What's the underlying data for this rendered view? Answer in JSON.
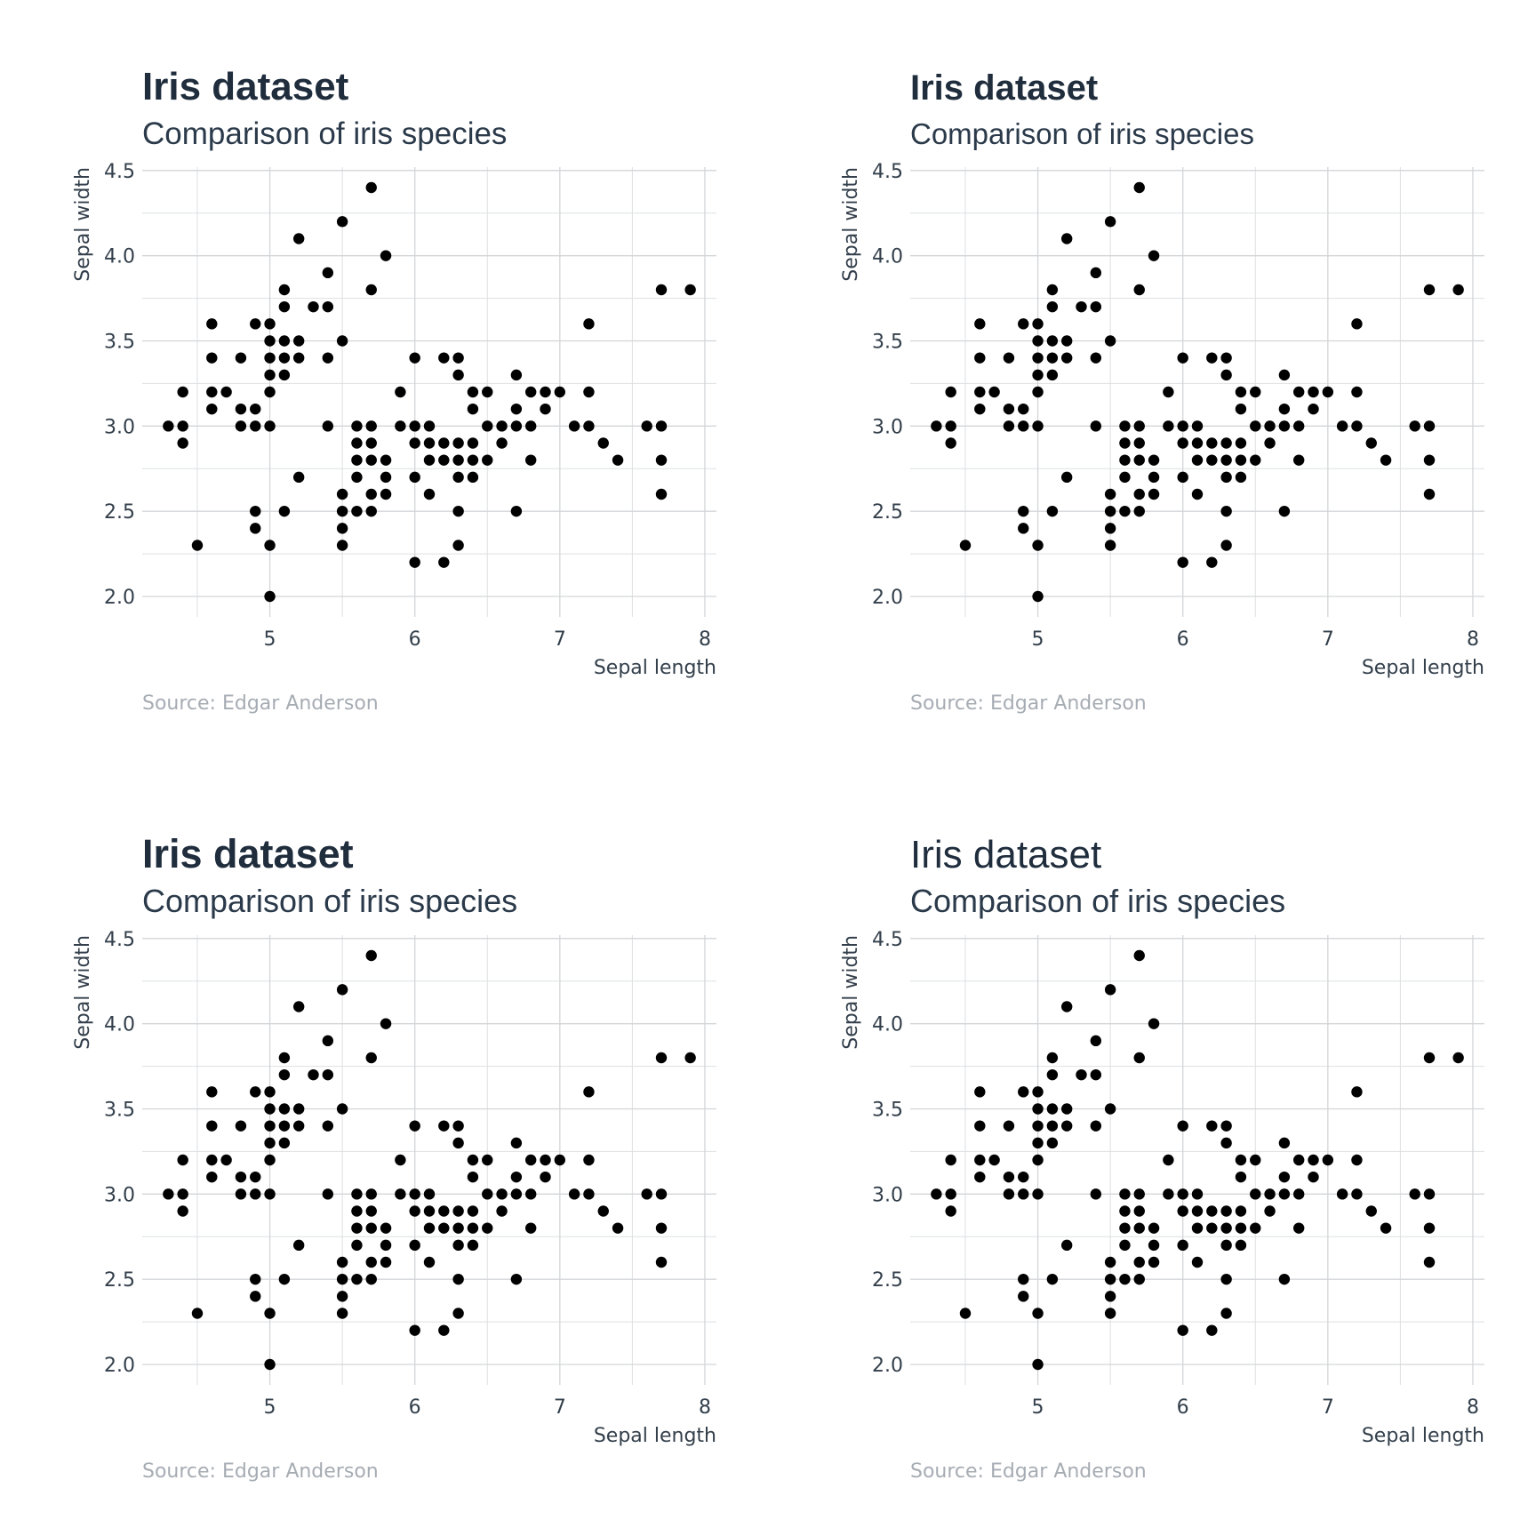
{
  "chart_data": [
    {
      "type": "scatter",
      "title": "Iris dataset",
      "subtitle": "Comparison of iris species",
      "caption": "Source: Edgar Anderson",
      "xlabel": "Sepal length",
      "ylabel": "Sepal width",
      "x_ticks": [
        "5",
        "6",
        "7",
        "8"
      ],
      "y_ticks": [
        "2.0",
        "2.5",
        "3.0",
        "3.5",
        "4.0",
        "4.5"
      ],
      "xlim": [
        4.12,
        8.08
      ],
      "ylim": [
        1.88,
        4.52
      ],
      "grid": true,
      "points": "iris"
    },
    {
      "type": "scatter",
      "title": "Iris dataset",
      "subtitle": "Comparison of iris species",
      "caption": "Source: Edgar Anderson",
      "xlabel": "Sepal length",
      "ylabel": "Sepal width",
      "x_ticks": [
        "5",
        "6",
        "7",
        "8"
      ],
      "y_ticks": [
        "2.0",
        "2.5",
        "3.0",
        "3.5",
        "4.0",
        "4.5"
      ],
      "xlim": [
        4.12,
        8.08
      ],
      "ylim": [
        1.88,
        4.52
      ],
      "grid": true,
      "points": "iris"
    },
    {
      "type": "scatter",
      "title": "Iris dataset",
      "subtitle": "Comparison of iris species",
      "caption": "Source: Edgar Anderson",
      "xlabel": "Sepal length",
      "ylabel": "Sepal width",
      "x_ticks": [
        "5",
        "6",
        "7",
        "8"
      ],
      "y_ticks": [
        "2.0",
        "2.5",
        "3.0",
        "3.5",
        "4.0",
        "4.5"
      ],
      "xlim": [
        4.12,
        8.08
      ],
      "ylim": [
        1.88,
        4.52
      ],
      "grid": true,
      "points": "iris"
    },
    {
      "type": "scatter",
      "title": "Iris dataset",
      "subtitle": "Comparison of iris species",
      "caption": "Source: Edgar Anderson",
      "xlabel": "Sepal length",
      "ylabel": "Sepal width",
      "x_ticks": [
        "5",
        "6",
        "7",
        "8"
      ],
      "y_ticks": [
        "2.0",
        "2.5",
        "3.0",
        "3.5",
        "4.0",
        "4.5"
      ],
      "xlim": [
        4.12,
        8.08
      ],
      "ylim": [
        1.88,
        4.52
      ],
      "grid": true,
      "points": "iris"
    }
  ],
  "iris": [
    [
      4.3,
      3.0
    ],
    [
      4.4,
      2.9
    ],
    [
      4.4,
      3.0
    ],
    [
      4.4,
      3.2
    ],
    [
      4.5,
      2.3
    ],
    [
      4.6,
      3.1
    ],
    [
      4.6,
      3.2
    ],
    [
      4.6,
      3.4
    ],
    [
      4.6,
      3.6
    ],
    [
      4.7,
      3.2
    ],
    [
      4.8,
      3.0
    ],
    [
      4.8,
      3.1
    ],
    [
      4.8,
      3.4
    ],
    [
      4.9,
      2.4
    ],
    [
      4.9,
      2.5
    ],
    [
      4.9,
      3.0
    ],
    [
      4.9,
      3.1
    ],
    [
      4.9,
      3.6
    ],
    [
      5.0,
      2.0
    ],
    [
      5.0,
      2.3
    ],
    [
      5.0,
      3.0
    ],
    [
      5.0,
      3.2
    ],
    [
      5.0,
      3.3
    ],
    [
      5.0,
      3.4
    ],
    [
      5.0,
      3.5
    ],
    [
      5.0,
      3.6
    ],
    [
      5.1,
      2.5
    ],
    [
      5.1,
      3.3
    ],
    [
      5.1,
      3.4
    ],
    [
      5.1,
      3.5
    ],
    [
      5.1,
      3.7
    ],
    [
      5.1,
      3.8
    ],
    [
      5.2,
      2.7
    ],
    [
      5.2,
      3.4
    ],
    [
      5.2,
      3.5
    ],
    [
      5.2,
      4.1
    ],
    [
      5.3,
      3.7
    ],
    [
      5.4,
      3.0
    ],
    [
      5.4,
      3.4
    ],
    [
      5.4,
      3.7
    ],
    [
      5.4,
      3.9
    ],
    [
      5.5,
      2.3
    ],
    [
      5.5,
      2.4
    ],
    [
      5.5,
      2.5
    ],
    [
      5.5,
      2.6
    ],
    [
      5.5,
      3.5
    ],
    [
      5.5,
      4.2
    ],
    [
      5.6,
      2.5
    ],
    [
      5.6,
      2.7
    ],
    [
      5.6,
      2.8
    ],
    [
      5.6,
      2.9
    ],
    [
      5.6,
      3.0
    ],
    [
      5.7,
      2.5
    ],
    [
      5.7,
      2.6
    ],
    [
      5.7,
      2.8
    ],
    [
      5.7,
      2.9
    ],
    [
      5.7,
      3.0
    ],
    [
      5.7,
      3.8
    ],
    [
      5.7,
      4.4
    ],
    [
      5.8,
      2.6
    ],
    [
      5.8,
      2.7
    ],
    [
      5.8,
      2.8
    ],
    [
      5.8,
      4.0
    ],
    [
      5.9,
      3.0
    ],
    [
      5.9,
      3.2
    ],
    [
      6.0,
      2.2
    ],
    [
      6.0,
      2.7
    ],
    [
      6.0,
      2.9
    ],
    [
      6.0,
      3.0
    ],
    [
      6.0,
      3.4
    ],
    [
      6.1,
      2.6
    ],
    [
      6.1,
      2.8
    ],
    [
      6.1,
      2.9
    ],
    [
      6.1,
      3.0
    ],
    [
      6.2,
      2.2
    ],
    [
      6.2,
      2.8
    ],
    [
      6.2,
      2.9
    ],
    [
      6.2,
      3.4
    ],
    [
      6.3,
      2.3
    ],
    [
      6.3,
      2.5
    ],
    [
      6.3,
      2.7
    ],
    [
      6.3,
      2.8
    ],
    [
      6.3,
      2.9
    ],
    [
      6.3,
      3.3
    ],
    [
      6.3,
      3.4
    ],
    [
      6.4,
      2.7
    ],
    [
      6.4,
      2.8
    ],
    [
      6.4,
      2.9
    ],
    [
      6.4,
      3.1
    ],
    [
      6.4,
      3.2
    ],
    [
      6.5,
      2.8
    ],
    [
      6.5,
      3.0
    ],
    [
      6.5,
      3.2
    ],
    [
      6.6,
      2.9
    ],
    [
      6.6,
      3.0
    ],
    [
      6.7,
      2.5
    ],
    [
      6.7,
      3.0
    ],
    [
      6.7,
      3.1
    ],
    [
      6.7,
      3.3
    ],
    [
      6.8,
      2.8
    ],
    [
      6.8,
      3.0
    ],
    [
      6.8,
      3.2
    ],
    [
      6.9,
      3.1
    ],
    [
      6.9,
      3.2
    ],
    [
      7.0,
      3.2
    ],
    [
      7.1,
      3.0
    ],
    [
      7.2,
      3.0
    ],
    [
      7.2,
      3.2
    ],
    [
      7.2,
      3.6
    ],
    [
      7.3,
      2.9
    ],
    [
      7.4,
      2.8
    ],
    [
      7.6,
      3.0
    ],
    [
      7.7,
      2.6
    ],
    [
      7.7,
      2.8
    ],
    [
      7.7,
      3.0
    ],
    [
      7.7,
      3.8
    ],
    [
      7.9,
      3.8
    ]
  ]
}
